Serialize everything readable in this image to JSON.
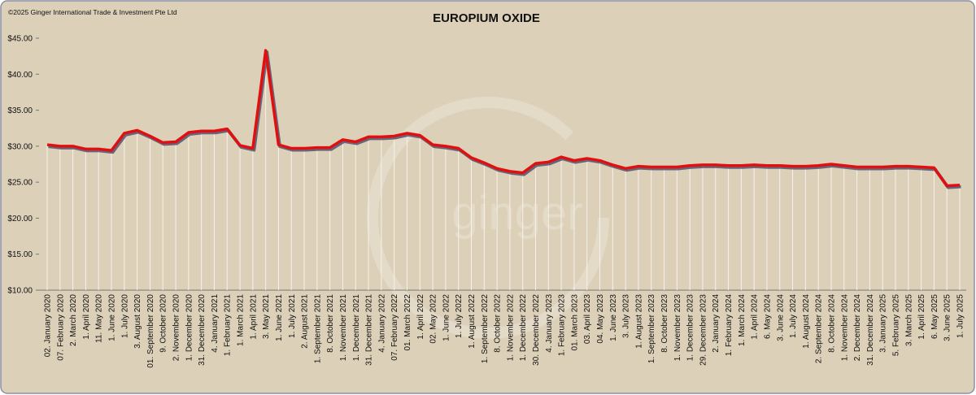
{
  "chart_data": {
    "type": "line",
    "title": "EUROPIUM OXIDE",
    "copyright": "©2025 Ginger International Trade & Investment Pte Ltd",
    "watermark": "ginger",
    "categories": [
      "02. January 2020",
      "07. February 2020",
      "2. March 2020",
      "1. April 2020",
      "11. May 2020",
      "1. June 2020",
      "1. July 2020",
      "3. August 2020",
      "01. September 2020",
      "9. October 2020",
      "2. November 2020",
      "1. December 2020",
      "31. December 2020",
      "4. January 2021",
      "1. February 2021",
      "1. March 2021",
      "1. April 2021",
      "3. May 2021",
      "1. June 2021",
      "1. July 2021",
      "2. August 2021",
      "1. September 2021",
      "8. October 2021",
      "1. November 2021",
      "1. December 2021",
      "31. December 2021",
      "4. January 2022",
      "07. February 2022",
      "01. March 2022",
      "1. April 2022",
      "02. May 2022",
      "1. June 2022",
      "1. July 2022",
      "1. August 2022",
      "1. September 2022",
      "8. October 2022",
      "1. November 2022",
      "1. December 2022",
      "30. December 2022",
      "4. January 2023",
      "1. February 2023",
      "01. March 2023",
      "03. April 2023",
      "04. May 2023",
      "1. June 2023",
      "3. July 2023",
      "1. August 2023",
      "1. September 2023",
      "8. October 2023",
      "1. November 2023",
      "1. December 2023",
      "29. December 2023",
      "2. January 2024",
      "1. February 2024",
      "1. March 2024",
      "1. April 2024",
      "6. May 2024",
      "3. June 2024",
      "1. July 2024",
      "1. August 2024",
      "2. September 2024",
      "8. October 2024",
      "1. November 2024",
      "2. December 2024",
      "31. December 2024",
      "3. January 2025",
      "5. February 2025",
      "3. March 2025",
      "1. April 2025",
      "6. May 2025",
      "3. June 2025",
      "1. July 2025"
    ],
    "series": [
      {
        "name": "Europium Oxide",
        "color": "#e01010",
        "values": [
          30.2,
          30.0,
          30.0,
          29.6,
          29.6,
          29.4,
          31.8,
          32.2,
          31.4,
          30.5,
          30.6,
          31.9,
          32.1,
          32.1,
          32.4,
          30.1,
          29.7,
          43.3,
          30.2,
          29.7,
          29.7,
          29.8,
          29.8,
          30.9,
          30.6,
          31.3,
          31.3,
          31.4,
          31.8,
          31.5,
          30.2,
          30.0,
          29.7,
          28.4,
          27.7,
          26.9,
          26.5,
          26.3,
          27.6,
          27.8,
          28.5,
          28.0,
          28.3,
          28.0,
          27.4,
          26.9,
          27.2,
          27.1,
          27.1,
          27.1,
          27.3,
          27.4,
          27.4,
          27.3,
          27.3,
          27.4,
          27.3,
          27.3,
          27.2,
          27.2,
          27.3,
          27.5,
          27.3,
          27.1,
          27.1,
          27.1,
          27.2,
          27.2,
          27.1,
          27.0,
          24.5,
          24.6
        ]
      }
    ],
    "ylim": [
      10,
      45
    ],
    "yticks": [
      {
        "value": 10,
        "label": "$10.00"
      },
      {
        "value": 15,
        "label": "$15.00"
      },
      {
        "value": 20,
        "label": "$20.00"
      },
      {
        "value": 25,
        "label": "$25.00"
      },
      {
        "value": 30,
        "label": "$30.00"
      },
      {
        "value": 35,
        "label": "$35.00"
      },
      {
        "value": 40,
        "label": "$40.00"
      },
      {
        "value": 45,
        "label": "$45.00"
      }
    ],
    "drop_lines": true
  }
}
